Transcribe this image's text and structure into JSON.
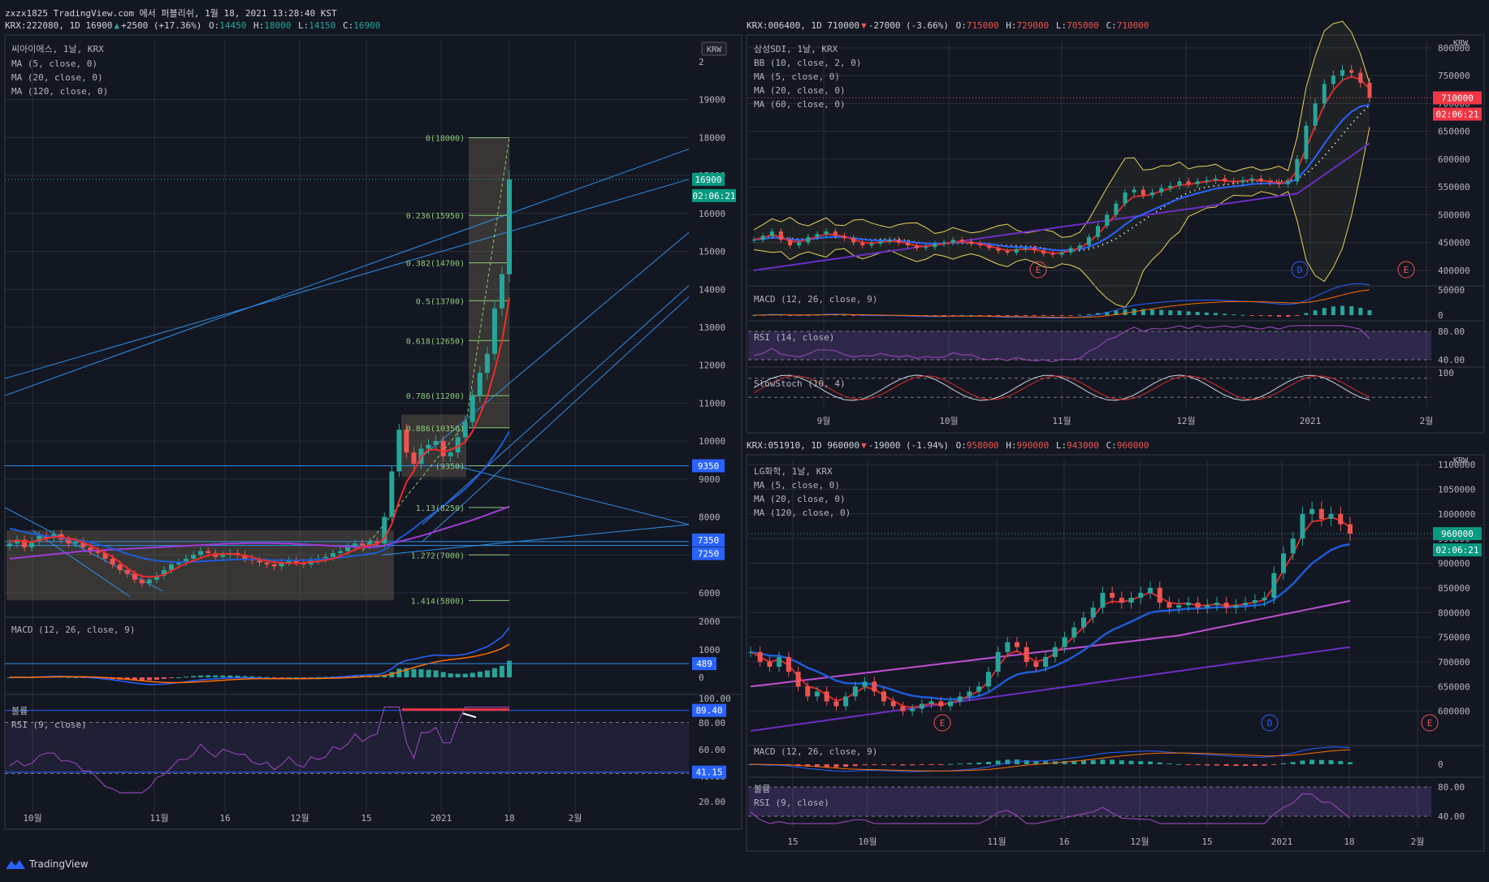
{
  "header": {
    "line1": "zxzx1825 TradingView.com 에서 퍼블리쉬, 1월 18, 2021 13:28:40 KST",
    "ticker1": "KRX:222080, 1D 16900",
    "change1": "+2500 (+17.36%)",
    "ohlc1": {
      "o": "14450",
      "h": "18000",
      "l": "14150",
      "c": "16900"
    },
    "ticker2": "KRX:006400, 1D 710000",
    "change2": "-27000 (-3.66%)",
    "ohlc2": {
      "o": "715000",
      "h": "729000",
      "l": "705000",
      "c": "710000"
    },
    "ticker3": "KRX:051910, 1D 960000",
    "change3": "-19000 (-1.94%)",
    "ohlc3": {
      "o": "958000",
      "h": "990000",
      "l": "943000",
      "c": "960000"
    }
  },
  "brand": "TradingView",
  "colors": {
    "up": "#26a69a",
    "down": "#ef5350",
    "bg": "#131722",
    "grid": "#2a2e39",
    "ma5": "#ef2c2c",
    "ma20": "#1e5bd6",
    "ma120": "#a13bd6",
    "fib": "#8ec97a",
    "channel": "#2f8fe6",
    "rsi": "#8e44ad"
  },
  "chart_data": [
    {
      "type": "line",
      "title": "씨아이에스, 1날, KRX",
      "indicators": [
        "MA (5, close, 0)",
        "MA (20, close, 0)",
        "MA (120, close, 0)"
      ],
      "currency": "KRW",
      "ylim": [
        5400,
        20600
      ],
      "y_ticks": [
        6000,
        7000,
        8000,
        9000,
        10000,
        11000,
        12000,
        13000,
        14000,
        15000,
        16000,
        17000,
        18000,
        19000
      ],
      "y_top_label": "2",
      "x_ticks": [
        "10월",
        "11월",
        "16",
        "12월",
        "15",
        "2021",
        "18",
        "2월"
      ],
      "price_labels": [
        {
          "value": 16900,
          "text": "16900"
        },
        {
          "value": 9350,
          "text": "9350"
        },
        {
          "value": 7350,
          "text": "7350"
        },
        {
          "value": 7250,
          "text": "7250"
        }
      ],
      "countdown": "02:06:21",
      "fib_levels": [
        {
          "label": "0(18000)",
          "value": 18000
        },
        {
          "label": "0.236(15950)",
          "value": 15950
        },
        {
          "label": "0.382(14700)",
          "value": 14700
        },
        {
          "label": "0.5(13700)",
          "value": 13700
        },
        {
          "label": "0.618(12650)",
          "value": 12650
        },
        {
          "label": "0.786(11200)",
          "value": 11200
        },
        {
          "label": "0.886(10350)",
          "value": 10350
        },
        {
          "label": "(9350)",
          "value": 9350
        },
        {
          "label": "1.13(8250)",
          "value": 8250
        },
        {
          "label": "1.272(7000)",
          "value": 7000
        },
        {
          "label": "1.414(5800)",
          "value": 5800
        }
      ],
      "close": [
        7300,
        7400,
        7200,
        7350,
        7500,
        7450,
        7550,
        7400,
        7300,
        7350,
        7200,
        7100,
        7050,
        6900,
        6750,
        6600,
        6500,
        6350,
        6250,
        6350,
        6450,
        6600,
        6750,
        6800,
        6900,
        7000,
        7100,
        7050,
        6950,
        7000,
        7050,
        7000,
        6900,
        6850,
        6800,
        6750,
        6700,
        6800,
        6850,
        6800,
        6750,
        6850,
        6900,
        6950,
        7050,
        7100,
        7200,
        7300,
        7250,
        7350,
        7300,
        8000,
        9200,
        10300,
        9700,
        9400,
        9800,
        9900,
        10000,
        9600,
        9700,
        10100,
        10500,
        11200,
        11800,
        12300,
        13500,
        14400,
        16900
      ],
      "ma5": [
        7350,
        7380,
        7350,
        7340,
        7390,
        7430,
        7480,
        7470,
        7440,
        7400,
        7330,
        7240,
        7150,
        7050,
        6950,
        6800,
        6650,
        6520,
        6440,
        6420,
        6430,
        6480,
        6580,
        6680,
        6780,
        6850,
        6920,
        6990,
        7010,
        7030,
        7030,
        7010,
        6980,
        6940,
        6880,
        6840,
        6810,
        6790,
        6780,
        6780,
        6790,
        6810,
        6830,
        6860,
        6900,
        6970,
        7050,
        7140,
        7200,
        7260,
        7280,
        7440,
        7810,
        8420,
        8920,
        9210,
        9600,
        9770,
        9780,
        9720,
        9770,
        9860,
        9980,
        10260,
        10690,
        11180,
        11850,
        12640,
        13780
      ],
      "ma20": [
        7700,
        7650,
        7600,
        7560,
        7530,
        7500,
        7480,
        7450,
        7420,
        7400,
        7370,
        7330,
        7280,
        7230,
        7170,
        7100,
        7030,
        6970,
        6920,
        6880,
        6850,
        6830,
        6820,
        6810,
        6810,
        6820,
        6830,
        6840,
        6850,
        6860,
        6870,
        6880,
        6880,
        6880,
        6880,
        6870,
        6860,
        6860,
        6860,
        6860,
        6860,
        6870,
        6880,
        6890,
        6910,
        6930,
        6950,
        6980,
        7000,
        7030,
        7060,
        7140,
        7270,
        7430,
        7560,
        7700,
        7860,
        8000,
        8150,
        8290,
        8430,
        8580,
        8740,
        8930,
        9140,
        9370,
        9640,
        9930,
        10250
      ],
      "ma120": [
        6900,
        6920,
        6940,
        6960,
        6980,
        7000,
        7020,
        7040,
        7060,
        7080,
        7100,
        7110,
        7120,
        7130,
        7140,
        7150,
        7160,
        7170,
        7180,
        7190,
        7200,
        7210,
        7220,
        7230,
        7240,
        7250,
        7260,
        7270,
        7280,
        7290,
        7300,
        7300,
        7310,
        7310,
        7310,
        7310,
        7310,
        7300,
        7300,
        7290,
        7280,
        7270,
        7260,
        7250,
        7240,
        7230,
        7220,
        7210,
        7200,
        7200,
        7210,
        7250,
        7300,
        7350,
        7400,
        7450,
        7500,
        7560,
        7620,
        7680,
        7740,
        7800,
        7860,
        7920,
        7990,
        8060,
        8130,
        8200,
        8280
      ],
      "macd_label": "MACD (12, 26, close, 9)",
      "macd_ticks": [
        "2000",
        "1000",
        "0"
      ],
      "macd_value": "489",
      "rsi_label": "RSI (9, close)",
      "vol_label": "볼륨",
      "rsi_ticks": [
        "100.00",
        "80.00",
        "60.00",
        "40.00",
        "20.00"
      ],
      "rsi_values": [
        "89.40",
        "41.15"
      ]
    },
    {
      "type": "line",
      "title": "삼성SDI, 1날, KRX",
      "indicators": [
        "BB (10, close, 2, 0)",
        "MA (5, close, 0)",
        "MA (20, close, 0)",
        "MA (60, close, 0)"
      ],
      "currency": "KRW",
      "ylim": [
        375000,
        810000
      ],
      "y_ticks": [
        400000,
        450000,
        500000,
        550000,
        600000,
        650000,
        700000,
        750000,
        800000
      ],
      "x_ticks": [
        "9월",
        "10월",
        "11월",
        "12월",
        "2021",
        "2월"
      ],
      "last_price": "710000",
      "countdown": "02:06:21",
      "close": [
        455000,
        462000,
        470000,
        455000,
        445000,
        450000,
        460000,
        465000,
        470000,
        462000,
        458000,
        450000,
        445000,
        448000,
        452000,
        455000,
        450000,
        445000,
        440000,
        442000,
        448000,
        450000,
        455000,
        452000,
        448000,
        445000,
        440000,
        435000,
        432000,
        438000,
        440000,
        436000,
        430000,
        428000,
        432000,
        440000,
        445000,
        460000,
        480000,
        500000,
        520000,
        540000,
        545000,
        535000,
        540000,
        548000,
        552000,
        560000,
        555000,
        560000,
        562000,
        565000,
        560000,
        558000,
        562000,
        565000,
        560000,
        558000,
        555000,
        560000,
        600000,
        660000,
        700000,
        735000,
        750000,
        760000,
        755000,
        737000,
        710000
      ],
      "macd_label": "MACD (12, 26, close, 9)",
      "macd_ticks": [
        "50000",
        "0"
      ],
      "rsi_label": "RSI (14, close)",
      "rsi_ticks": [
        "80.00",
        "40.00"
      ],
      "stoch_label": "SlowStoch (10, 4)",
      "stoch_ticks": [
        "100"
      ],
      "badges": [
        "E",
        "D",
        "E"
      ]
    },
    {
      "type": "line",
      "title": "LG화학, 1날, KRX",
      "indicators": [
        "MA (5, close, 0)",
        "MA (20, close, 0)",
        "MA (120, close, 0)"
      ],
      "currency": "KRW",
      "ylim": [
        560000,
        1110000
      ],
      "y_ticks": [
        600000,
        650000,
        700000,
        750000,
        800000,
        850000,
        900000,
        950000,
        1000000,
        1050000,
        1100000
      ],
      "x_ticks": [
        "15",
        "10월",
        "11월",
        "16",
        "12월",
        "15",
        "2021",
        "18",
        "2월"
      ],
      "last_price": "960000",
      "countdown": "02:06:21",
      "close": [
        720000,
        700000,
        690000,
        710000,
        680000,
        650000,
        630000,
        640000,
        620000,
        610000,
        630000,
        650000,
        660000,
        640000,
        620000,
        610000,
        600000,
        605000,
        615000,
        620000,
        610000,
        620000,
        630000,
        640000,
        650000,
        680000,
        720000,
        740000,
        730000,
        700000,
        690000,
        710000,
        730000,
        750000,
        770000,
        790000,
        810000,
        840000,
        830000,
        820000,
        830000,
        840000,
        850000,
        820000,
        810000,
        815000,
        820000,
        810000,
        815000,
        820000,
        810000,
        815000,
        820000,
        825000,
        830000,
        880000,
        920000,
        950000,
        1000000,
        1010000,
        990000,
        1000000,
        979000,
        960000
      ],
      "macd_label": "MACD (12, 26, close, 9)",
      "macd_ticks": [
        "0"
      ],
      "rsi_label": "RSI (9, close)",
      "vol_label": "볼륨",
      "rsi_ticks": [
        "80.00",
        "40.00"
      ],
      "badges": [
        "E",
        "D",
        "E"
      ]
    }
  ]
}
